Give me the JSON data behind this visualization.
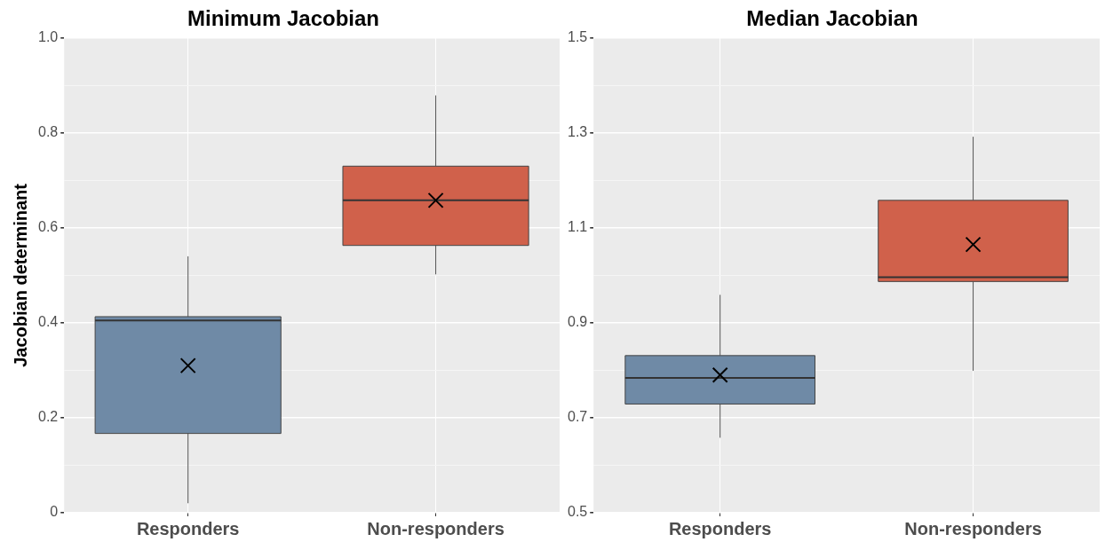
{
  "chart_data": [
    {
      "type": "box",
      "title": "Minimum Jacobian",
      "ylabel": "Jacobian determinant",
      "categories": [
        "Responders",
        "Non-responders"
      ],
      "colors": [
        "#6f8aa6",
        "#d0614b"
      ],
      "ylim": [
        0,
        1
      ],
      "yticks": [
        0,
        {
          "value": 0.1,
          "label": null
        },
        {
          "value": 0.2,
          "label": "0.2"
        },
        {
          "value": 0.3,
          "label": null
        },
        {
          "value": 0.4,
          "label": "0.4"
        },
        {
          "value": 0.5,
          "label": null
        },
        {
          "value": 0.6,
          "label": "0.6"
        },
        {
          "value": 0.7,
          "label": null
        },
        {
          "value": 0.8,
          "label": "0.8"
        },
        {
          "value": 0.9,
          "label": null
        },
        {
          "value": 1,
          "label": "1.0"
        }
      ],
      "grid": true,
      "boxes": [
        {
          "low": 0.02,
          "q1": 0.167,
          "median": 0.405,
          "q3": 0.413,
          "high": 0.54,
          "mean": 0.31
        },
        {
          "low": 0.502,
          "q1": 0.563,
          "median": 0.658,
          "q3": 0.73,
          "high": 0.879,
          "mean": 0.658
        }
      ]
    },
    {
      "type": "box",
      "title": "Median Jacobian",
      "categories": [
        "Responders",
        "Non-responders"
      ],
      "colors": [
        "#6f8aa6",
        "#d0614b"
      ],
      "ylim": [
        0.5,
        1.5
      ],
      "yticks": [
        {
          "value": 0.5,
          "label": "0.5"
        },
        {
          "value": 0.6,
          "label": null
        },
        {
          "value": 0.7,
          "label": "0.7"
        },
        {
          "value": 0.8,
          "label": null
        },
        {
          "value": 0.9,
          "label": "0.9"
        },
        {
          "value": 1,
          "label": null
        },
        {
          "value": 1.1,
          "label": "1.1"
        },
        {
          "value": 1.2,
          "label": null
        },
        {
          "value": 1.3,
          "label": "1.3"
        },
        {
          "value": 1.4,
          "label": null
        },
        {
          "value": 1.5,
          "label": "1.5"
        }
      ],
      "grid": true,
      "boxes": [
        {
          "low": 0.658,
          "q1": 0.729,
          "median": 0.784,
          "q3": 0.831,
          "high": 0.959,
          "mean": 0.79
        },
        {
          "low": 0.799,
          "q1": 0.987,
          "median": 0.996,
          "q3": 1.158,
          "high": 1.292,
          "mean": 1.065
        }
      ]
    }
  ]
}
